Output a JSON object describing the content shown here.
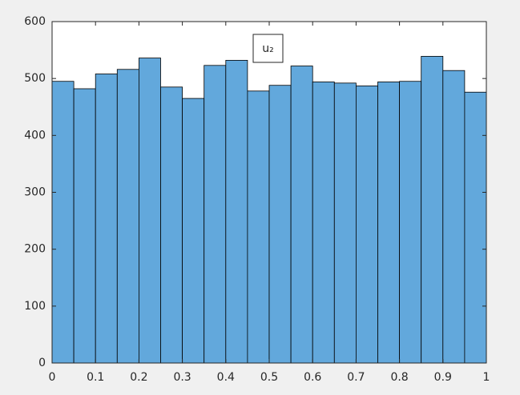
{
  "chart_data": {
    "type": "histogram",
    "bins": [
      0,
      0.05,
      0.1,
      0.15,
      0.2,
      0.25,
      0.3,
      0.35,
      0.4,
      0.45,
      0.5,
      0.55,
      0.6,
      0.65,
      0.7,
      0.75,
      0.8,
      0.85,
      0.9,
      0.95,
      1
    ],
    "series": [
      {
        "name": "u₂",
        "color": "#62a8dc",
        "values": [
          495,
          482,
          508,
          516,
          536,
          485,
          465,
          523,
          532,
          478,
          488,
          522,
          494,
          492,
          487,
          494,
          495,
          539,
          514,
          476
        ]
      }
    ],
    "xlim": [
      0,
      1
    ],
    "xticks": [
      0,
      0.1,
      0.2,
      0.3,
      0.4,
      0.5,
      0.6,
      0.7,
      0.8,
      0.9,
      1
    ],
    "ylim": [
      0,
      600
    ],
    "yticks": [
      0,
      100,
      200,
      300,
      400,
      500,
      600
    ],
    "legend": "top"
  }
}
